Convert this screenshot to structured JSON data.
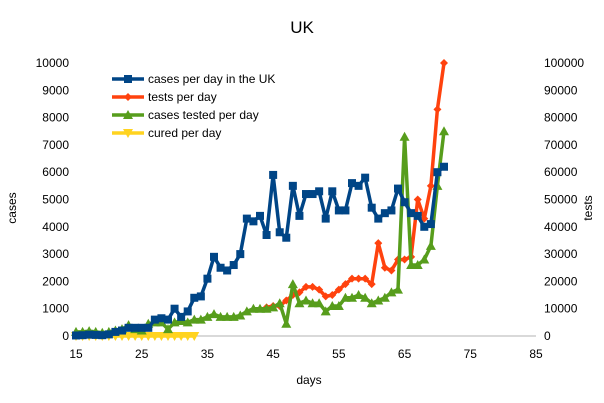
{
  "chart_data": {
    "type": "line",
    "title": "UK",
    "xlabel": "days",
    "ylabel": "cases",
    "y2label": "tests",
    "xlim": [
      15,
      85
    ],
    "ylim": [
      0,
      10000
    ],
    "y2lim": [
      0,
      100000
    ],
    "xticks": [
      "15",
      "25",
      "35",
      "45",
      "55",
      "65",
      "75",
      "85"
    ],
    "yticks": [
      "0",
      "1000",
      "2000",
      "3000",
      "4000",
      "5000",
      "6000",
      "7000",
      "8000",
      "9000",
      "10000"
    ],
    "y2ticks": [
      "0",
      "10000",
      "20000",
      "30000",
      "40000",
      "50000",
      "60000",
      "70000",
      "80000",
      "90000",
      "100000"
    ],
    "grid": false,
    "legend_position": "top-left",
    "series": [
      {
        "name": "cases per day in the UK",
        "axis": "left",
        "color": "#004586",
        "marker": "square",
        "x": [
          15,
          16,
          17,
          18,
          19,
          20,
          21,
          22,
          23,
          24,
          25,
          26,
          27,
          28,
          29,
          30,
          31,
          32,
          33,
          34,
          35,
          36,
          37,
          38,
          39,
          40,
          41,
          42,
          43,
          44,
          45,
          46,
          47,
          48,
          49,
          50,
          51,
          52,
          53,
          54,
          55,
          56,
          57,
          58,
          59,
          60,
          61,
          62,
          63,
          64,
          65,
          66,
          67,
          68,
          69,
          70,
          71
        ],
        "y": [
          20,
          30,
          50,
          40,
          30,
          60,
          150,
          200,
          300,
          300,
          300,
          300,
          600,
          650,
          600,
          1000,
          700,
          900,
          1400,
          1450,
          2100,
          2900,
          2500,
          2400,
          2600,
          3000,
          4300,
          4200,
          4400,
          3700,
          5900,
          3800,
          3600,
          5500,
          4400,
          5200,
          5200,
          5300,
          4300,
          5300,
          4600,
          4600,
          5600,
          5500,
          5800,
          4700,
          4300,
          4500,
          4600,
          5400,
          4900,
          4500,
          4400,
          4000,
          4100,
          6000,
          6200
        ]
      },
      {
        "name": "tests per day",
        "axis": "right",
        "color": "#ff420e",
        "marker": "diamond",
        "x": [
          44,
          45,
          46,
          47,
          48,
          49,
          50,
          51,
          52,
          53,
          54,
          55,
          56,
          57,
          58,
          59,
          60,
          61,
          62,
          63,
          64,
          65,
          66,
          67,
          68,
          69,
          70,
          71
        ],
        "y": [
          10500,
          11000,
          11000,
          13000,
          15000,
          16000,
          18000,
          18000,
          17000,
          14500,
          15000,
          17000,
          19000,
          21000,
          21000,
          21000,
          19000,
          34000,
          25000,
          24000,
          28000,
          28000,
          29000,
          50000,
          43000,
          55000,
          83000,
          100000
        ]
      },
      {
        "name": "cases tested per day",
        "axis": "right",
        "color": "#579d1c",
        "marker": "triangle",
        "x": [
          15,
          16,
          17,
          18,
          19,
          20,
          21,
          22,
          23,
          24,
          25,
          26,
          27,
          28,
          29,
          30,
          31,
          32,
          33,
          34,
          35,
          36,
          37,
          38,
          39,
          40,
          41,
          42,
          43,
          44,
          45,
          46,
          47,
          48,
          49,
          50,
          51,
          52,
          53,
          54,
          55,
          56,
          57,
          58,
          59,
          60,
          61,
          62,
          63,
          64,
          65,
          66,
          67,
          68,
          69,
          70,
          71
        ],
        "y": [
          1500,
          1500,
          1800,
          1500,
          1200,
          1500,
          2000,
          2500,
          4000,
          2500,
          2000,
          4500,
          5000,
          5000,
          2500,
          5000,
          5500,
          5000,
          6000,
          6000,
          7000,
          8000,
          7000,
          7000,
          7000,
          7500,
          9000,
          10000,
          10000,
          10000,
          10500,
          12000,
          4500,
          19000,
          12000,
          13000,
          12000,
          12000,
          9000,
          11000,
          11000,
          14000,
          14000,
          15000,
          14000,
          12000,
          13000,
          14000,
          16000,
          17000,
          73000,
          26000,
          26000,
          28000,
          33000,
          55000,
          75000
        ]
      },
      {
        "name": "cured per day",
        "axis": "left",
        "color": "#ffd320",
        "marker": "triangle-down",
        "x": [
          15,
          16,
          17,
          18,
          19,
          20,
          21,
          22,
          23,
          24,
          25,
          26,
          27,
          28,
          29,
          30,
          31,
          32,
          33
        ],
        "y": [
          0,
          0,
          0,
          0,
          0,
          0,
          0,
          0,
          0,
          0,
          0,
          0,
          0,
          0,
          0,
          0,
          0,
          0,
          0
        ]
      }
    ]
  }
}
